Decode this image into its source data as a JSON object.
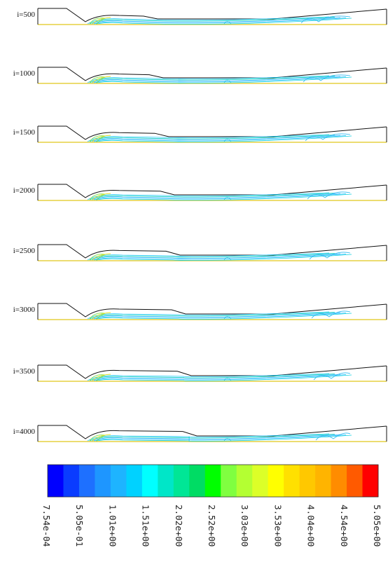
{
  "panels": [
    {
      "label": "i=500"
    },
    {
      "label": "i=1000"
    },
    {
      "label": "i=1500"
    },
    {
      "label": "i=2000"
    },
    {
      "label": "i=2500"
    },
    {
      "label": "i=3000"
    },
    {
      "label": "i=3500"
    },
    {
      "label": "i=4000"
    }
  ],
  "colorbar": {
    "colors": [
      "#0000ff",
      "#0a3cff",
      "#1e70ff",
      "#1e96ff",
      "#1eb4ff",
      "#00d2ff",
      "#00ffff",
      "#00e6c8",
      "#00e696",
      "#00dc64",
      "#00ff00",
      "#80ff40",
      "#b4ff32",
      "#dcff28",
      "#ffff00",
      "#ffe000",
      "#ffc800",
      "#ffb400",
      "#ff8c00",
      "#ff5a00",
      "#ff0000"
    ],
    "labels": [
      "7.54e-04",
      "5.05e-01",
      "1.01e+00",
      "1.51e+00",
      "2.02e+00",
      "2.52e+00",
      "3.03e+00",
      "3.53e+00",
      "4.04e+00",
      "4.54e+00",
      "5.05e+00"
    ]
  }
}
